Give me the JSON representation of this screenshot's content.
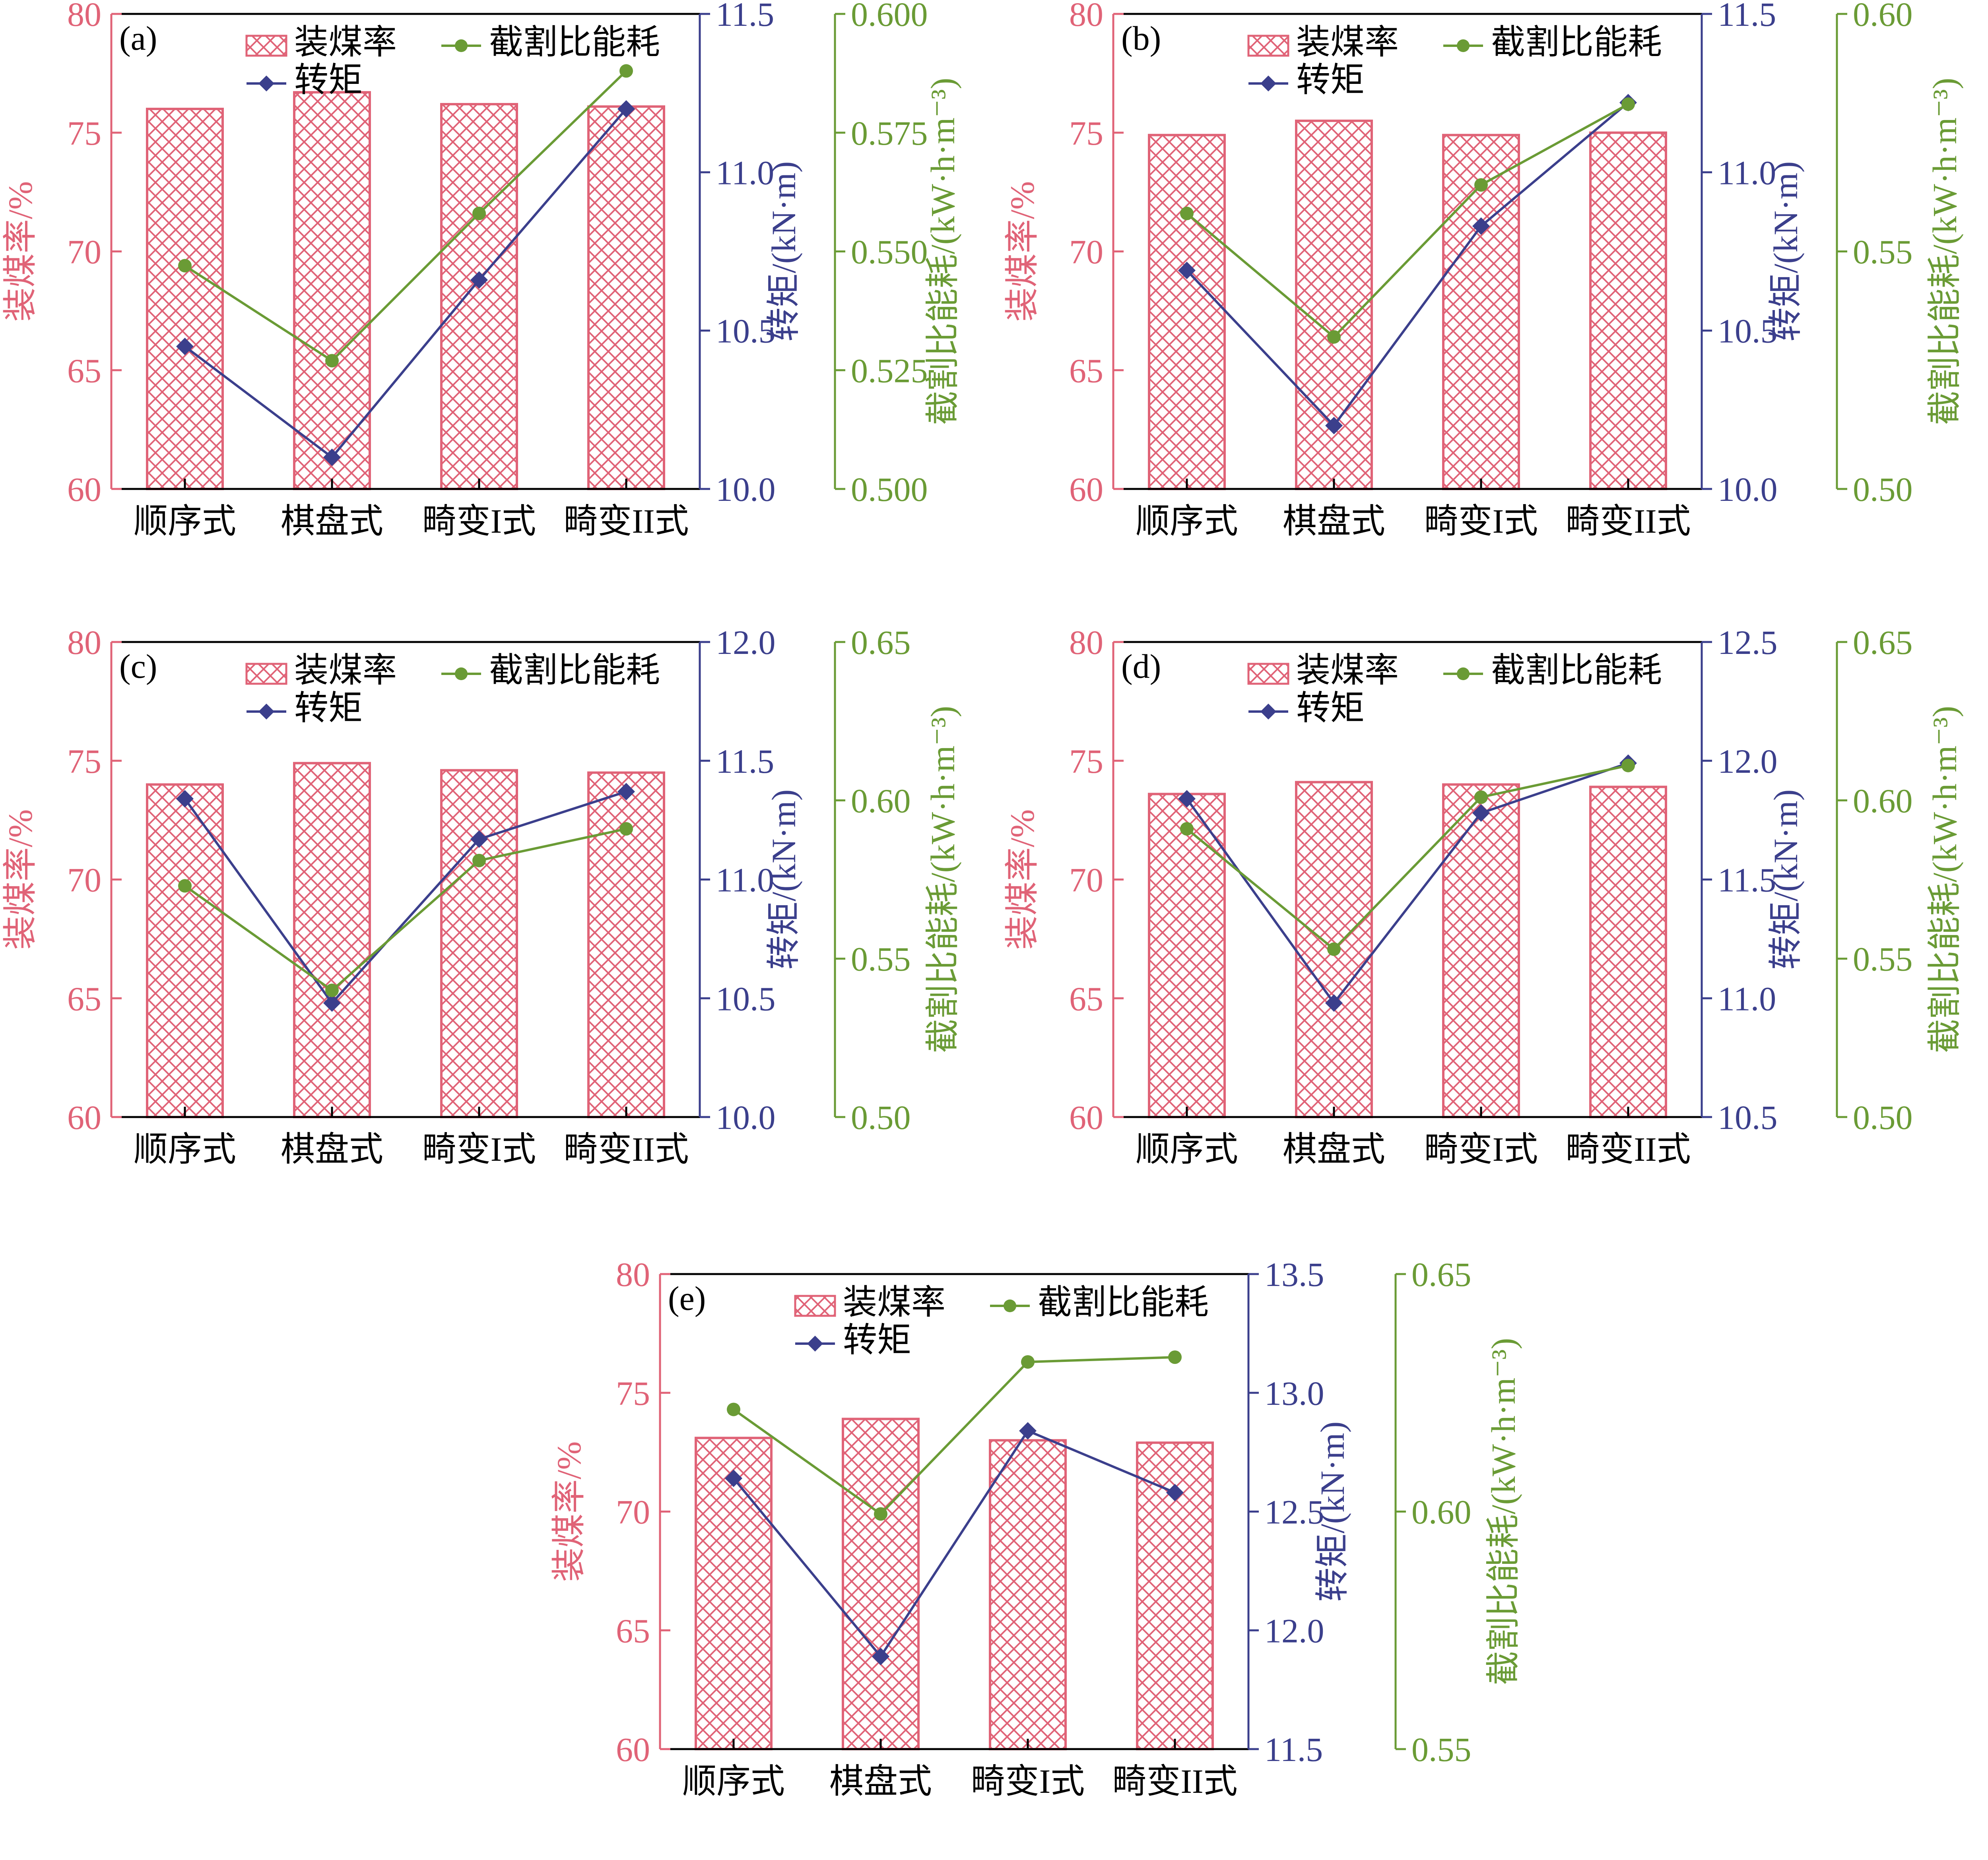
{
  "colors": {
    "coal": "#e06377",
    "torque": "#3b3f8c",
    "energy": "#6a9b35",
    "axis": "#000000"
  },
  "legend": {
    "coal": "装煤率",
    "torque": "转矩",
    "energy": "截割比能耗"
  },
  "chart_data": [
    {
      "panel": "(a)",
      "type": "bar",
      "categories": [
        "顺序式",
        "棋盘式",
        "畸变I式",
        "畸变II式"
      ],
      "ylabel_left": "装煤率/%",
      "ylabel_mid": "转矩/(kN·m)",
      "ylabel_right": "截割比能耗/(kW·h·m⁻³)",
      "ylim_left": [
        60,
        80
      ],
      "yticks_left": [
        "60",
        "65",
        "70",
        "75",
        "80"
      ],
      "ylim_mid": [
        10.0,
        11.5
      ],
      "yticks_mid": [
        "10.0",
        "10.5",
        "11.0",
        "11.5"
      ],
      "ylim_right": [
        0.5,
        0.6
      ],
      "yticks_right": [
        "0.500",
        "0.525",
        "0.550",
        "0.575",
        "0.600"
      ],
      "series": [
        {
          "name": "装煤率",
          "kind": "bar",
          "axis": "left",
          "values": [
            76.0,
            76.7,
            76.2,
            76.1
          ]
        },
        {
          "name": "转矩",
          "kind": "line",
          "axis": "mid",
          "values": [
            10.45,
            10.1,
            10.66,
            11.2
          ]
        },
        {
          "name": "截割比能耗",
          "kind": "line",
          "axis": "right",
          "values": [
            0.547,
            0.527,
            0.558,
            0.588
          ]
        }
      ]
    },
    {
      "panel": "(b)",
      "type": "bar",
      "categories": [
        "顺序式",
        "棋盘式",
        "畸变I式",
        "畸变II式"
      ],
      "ylabel_left": "装煤率/%",
      "ylabel_mid": "转矩/(kN·m)",
      "ylabel_right": "截割比能耗/(kW·h·m⁻³)",
      "ylim_left": [
        60,
        80
      ],
      "yticks_left": [
        "60",
        "65",
        "70",
        "75",
        "80"
      ],
      "ylim_mid": [
        10.0,
        11.5
      ],
      "yticks_mid": [
        "10.0",
        "10.5",
        "11.0",
        "11.5"
      ],
      "ylim_right": [
        0.5,
        0.6
      ],
      "yticks_right": [
        "0.50",
        "0.55",
        "0.60"
      ],
      "series": [
        {
          "name": "装煤率",
          "kind": "bar",
          "axis": "left",
          "values": [
            74.9,
            75.5,
            74.9,
            75.0
          ]
        },
        {
          "name": "转矩",
          "kind": "line",
          "axis": "mid",
          "values": [
            10.69,
            10.2,
            10.83,
            11.22
          ]
        },
        {
          "name": "截割比能耗",
          "kind": "line",
          "axis": "right",
          "values": [
            0.558,
            0.532,
            0.564,
            0.581
          ]
        }
      ]
    },
    {
      "panel": "(c)",
      "type": "bar",
      "categories": [
        "顺序式",
        "棋盘式",
        "畸变I式",
        "畸变II式"
      ],
      "ylabel_left": "装煤率/%",
      "ylabel_mid": "转矩/(kN·m)",
      "ylabel_right": "截割比能耗/(kW·h·m⁻³)",
      "ylim_left": [
        60,
        80
      ],
      "yticks_left": [
        "60",
        "65",
        "70",
        "75",
        "80"
      ],
      "ylim_mid": [
        10.0,
        12.0
      ],
      "yticks_mid": [
        "10.0",
        "10.5",
        "11.0",
        "11.5",
        "12.0"
      ],
      "ylim_right": [
        0.5,
        0.65
      ],
      "yticks_right": [
        "0.50",
        "0.55",
        "0.60",
        "0.65"
      ],
      "series": [
        {
          "name": "装煤率",
          "kind": "bar",
          "axis": "left",
          "values": [
            74.0,
            74.9,
            74.6,
            74.5
          ]
        },
        {
          "name": "转矩",
          "kind": "line",
          "axis": "mid",
          "values": [
            11.34,
            10.48,
            11.17,
            11.37
          ]
        },
        {
          "name": "截割比能耗",
          "kind": "line",
          "axis": "right",
          "values": [
            0.573,
            0.54,
            0.581,
            0.591
          ]
        }
      ]
    },
    {
      "panel": "(d)",
      "type": "bar",
      "categories": [
        "顺序式",
        "棋盘式",
        "畸变I式",
        "畸变II式"
      ],
      "ylabel_left": "装煤率/%",
      "ylabel_mid": "转矩/(kN·m)",
      "ylabel_right": "截割比能耗/(kW·h·m⁻³)",
      "ylim_left": [
        60,
        80
      ],
      "yticks_left": [
        "60",
        "65",
        "70",
        "75",
        "80"
      ],
      "ylim_mid": [
        10.5,
        12.5
      ],
      "yticks_mid": [
        "10.5",
        "11.0",
        "11.5",
        "12.0",
        "12.5"
      ],
      "ylim_right": [
        0.5,
        0.65
      ],
      "yticks_right": [
        "0.50",
        "0.55",
        "0.60",
        "0.65"
      ],
      "series": [
        {
          "name": "装煤率",
          "kind": "bar",
          "axis": "left",
          "values": [
            73.6,
            74.1,
            74.0,
            73.9
          ]
        },
        {
          "name": "转矩",
          "kind": "line",
          "axis": "mid",
          "values": [
            11.84,
            10.98,
            11.78,
            11.99
          ]
        },
        {
          "name": "截割比能耗",
          "kind": "line",
          "axis": "right",
          "values": [
            0.591,
            0.553,
            0.601,
            0.611
          ]
        }
      ]
    },
    {
      "panel": "(e)",
      "type": "bar",
      "categories": [
        "顺序式",
        "棋盘式",
        "畸变I式",
        "畸变II式"
      ],
      "ylabel_left": "装煤率/%",
      "ylabel_mid": "转矩/(kN·m)",
      "ylabel_right": "截割比能耗/(kW·h·m⁻³)",
      "ylim_left": [
        60,
        80
      ],
      "yticks_left": [
        "60",
        "65",
        "70",
        "75",
        "80"
      ],
      "ylim_mid": [
        11.5,
        13.5
      ],
      "yticks_mid": [
        "11.5",
        "12.0",
        "12.5",
        "13.0",
        "13.5"
      ],
      "ylim_right": [
        0.55,
        0.65
      ],
      "yticks_right": [
        "0.55",
        "0.60",
        "0.65"
      ],
      "series": [
        {
          "name": "装煤率",
          "kind": "bar",
          "axis": "left",
          "values": [
            73.1,
            73.9,
            73.0,
            72.9
          ]
        },
        {
          "name": "转矩",
          "kind": "line",
          "axis": "mid",
          "values": [
            12.64,
            11.89,
            12.84,
            12.58
          ]
        },
        {
          "name": "截割比能耗",
          "kind": "line",
          "axis": "right",
          "values": [
            0.6215,
            0.5995,
            0.6315,
            0.6325
          ]
        }
      ]
    }
  ]
}
